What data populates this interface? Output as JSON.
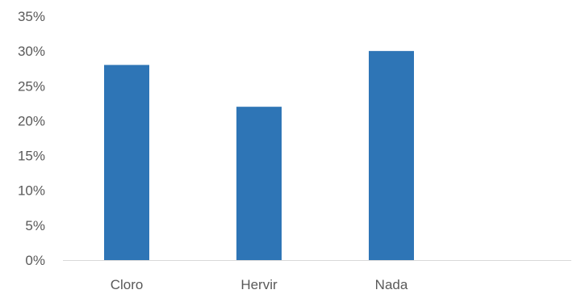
{
  "chart_data": {
    "type": "bar",
    "categories": [
      "Cloro",
      "Hervir",
      "Nada"
    ],
    "values": [
      0.28,
      0.22,
      0.3
    ],
    "ylim": [
      0,
      0.35
    ],
    "yticks": [
      "0%",
      "5%",
      "10%",
      "15%",
      "20%",
      "25%",
      "30%",
      "35%"
    ],
    "grid": false,
    "legend": "none",
    "bar_color": "#2E75B6",
    "axis_color": "#D9D9D9",
    "text_color": "#595959"
  }
}
